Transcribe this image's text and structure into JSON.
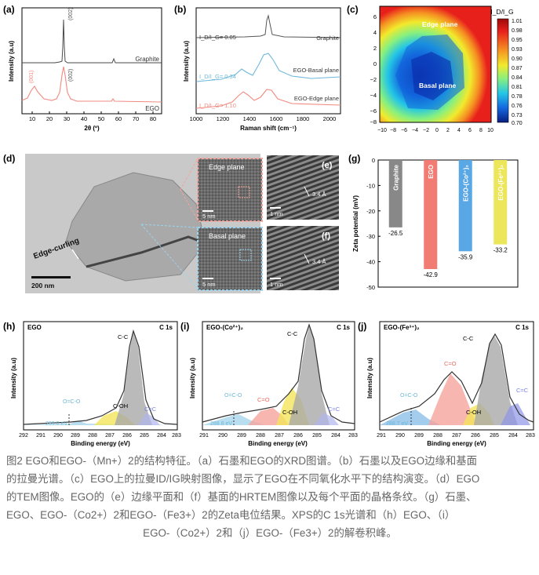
{
  "panels": {
    "a": {
      "label": "(a)",
      "xlabel": "2θ (º)",
      "ylabel": "Intensity (a.u)",
      "xticks": [
        "10",
        "20",
        "30",
        "40",
        "50",
        "60",
        "70",
        "80"
      ],
      "series_labels": {
        "graphite": "Graphite",
        "ego": "EGO"
      },
      "peaks": {
        "graphite_002": "(002)",
        "ego_001": "(001)",
        "ego_002": "(002)"
      },
      "colors": {
        "graphite": "#4a4a4a",
        "ego": "#f08a80"
      }
    },
    "b": {
      "label": "(b)",
      "xlabel": "Raman shift (cm⁻¹)",
      "ylabel": "Intensity (a.u)",
      "xticks": [
        "1000",
        "1200",
        "1400",
        "1600",
        "1800",
        "2000"
      ],
      "ratios": {
        "graphite": "I_D/I_G= 0.05",
        "basal": "I_D/I_G= 0.34",
        "edge": "I_D/I_G= 1.10"
      },
      "series_labels": {
        "graphite": "Graphite",
        "basal": "EGO-Basal plane",
        "edge": "EGO-Edge plane"
      },
      "colors": {
        "graphite": "#555555",
        "basal": "#6db8d8",
        "edge": "#f08a80"
      }
    },
    "c": {
      "label": "(c)",
      "edge_label": "Edge plane",
      "basal_label": "Basal plane",
      "colorbar_title": "I_D/I_G",
      "colorbar_ticks": [
        "1.01",
        "0.98",
        "0.95",
        "0.93",
        "0.90",
        "0.87",
        "0.84",
        "0.81",
        "0.78",
        "0.76",
        "0.73",
        "0.70"
      ],
      "xticks": [
        "−10",
        "−8",
        "−6",
        "−4",
        "−2",
        "0",
        "2",
        "4",
        "6",
        "8",
        "10"
      ],
      "yticks": [
        "6",
        "4",
        "2",
        "0",
        "−2",
        "−4",
        "−6",
        "−8"
      ]
    },
    "d": {
      "label": "(d)",
      "annotation": "Edge-curling",
      "scale_main": "200 nm",
      "inset_edge_title": "Edge plane",
      "inset_basal_title": "Basal plane",
      "scale_inset": "5 nm",
      "e_label": "(e)",
      "f_label": "(f)",
      "e_spacing": "3.4 Å",
      "f_spacing": "3.4 Å",
      "scale_hr": "1 nm"
    },
    "g": {
      "label": "(g)",
      "ylabel": "Zeta potential (mV)"
    },
    "h": {
      "label": "(h)",
      "title": "EGO",
      "core": "C 1s",
      "be": "289.0 eV"
    },
    "i": {
      "label": "(i)",
      "title": "EGO-(Co²⁺)₂",
      "core": "C 1s",
      "be": "288.8 eV"
    },
    "j": {
      "label": "(j)",
      "title": "EGO-(Fe³⁺)₂",
      "core": "C 1s",
      "be": "288.7 eV"
    },
    "xps_common": {
      "xlabel": "Binding energy (eV)",
      "ylabel": "Intensity (a.u)",
      "xticks": [
        "292",
        "291",
        "290",
        "289",
        "288",
        "287",
        "286",
        "285",
        "284",
        "283"
      ],
      "xticks_ij": [
        "291",
        "290",
        "289",
        "288",
        "287",
        "286",
        "285",
        "284",
        "283"
      ],
      "components": {
        "cc": "C-C",
        "coh": "C-OH",
        "co": "C=O",
        "cec": "C=C"
      }
    }
  },
  "chart_data": [
    {
      "type": "bar",
      "panel": "g",
      "categories": [
        "Graphite",
        "EGO",
        "EGO-(Co²⁺)₂",
        "EGO-(Fe³⁺)₂"
      ],
      "values": [
        -26.5,
        -42.9,
        -35.9,
        -33.2
      ],
      "value_labels": [
        "-26.5",
        "-42.9",
        "-35.9",
        "-33.2"
      ],
      "colors": [
        "#888888",
        "#f27c73",
        "#5aa7e6",
        "#ece65a"
      ],
      "ylim": [
        -50,
        0
      ],
      "yticks": [
        "0",
        "-10",
        "-20",
        "-30",
        "-40",
        "-50"
      ],
      "ylabel": "Zeta potential (mV)"
    }
  ],
  "caption": {
    "lines": [
      "图2 EGO和EGO-（Mn+）2的结构特征。（a）石墨和EGO的XRD图谱。（b）石墨以及EGO边缘和基面",
      "的拉曼光谱。（c）EGO上的拉曼ID/IG映射图像，显示了EGO在不同氧化水平下的结构演变。（d）EGO",
      "的TEM图像。EGO的（e）边缘平面和（f）基面的HRTEM图像以及每个平面的晶格条纹。（g）石墨、",
      "EGO、EGO-（Co2+）2和EGO-（Fe3+）2的Zeta电位结果。XPS的C 1s光谱和（h）EGO、（i）",
      "EGO-（Co2+）2和（j）EGO-（Fe3+）2的解卷积峰。"
    ]
  }
}
